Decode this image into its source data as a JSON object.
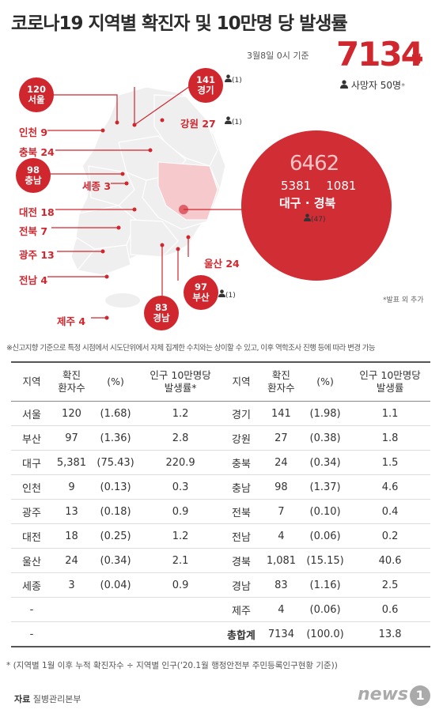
{
  "header": {
    "title": "코로나19 지역별 확진자 및 10만명 당 발생률",
    "date": "3월8일 0시 기준",
    "total": "7134",
    "total_unit": "명",
    "deaths": "사망자 50명",
    "deaths_mark": "*"
  },
  "map": {
    "big": {
      "total": "6462",
      "daegu": "5381",
      "gyeongbuk": "1081",
      "names": "대구 · 경북",
      "deaths": "(47)"
    },
    "labels": {
      "seoul_num": "120",
      "seoul_name": "서울",
      "gyeonggi_num": "141",
      "gyeonggi_name": "경기",
      "gyeonggi_death": "(1)",
      "incheon": "인천 9",
      "gangwon": "강원 27",
      "gangwon_death": "(1)",
      "chungbuk": "충북 24",
      "chungnam_num": "98",
      "chungnam_name": "충남",
      "sejong": "세종 3",
      "daejeon": "대전 18",
      "jeonbuk": "전북 7",
      "gwangju": "광주 13",
      "jeonnam": "전남 4",
      "jeju": "제주 4",
      "ulsan": "울산 24",
      "busan_num": "97",
      "busan_name": "부산",
      "busan_death": "(1)",
      "gyeongnam_num": "83",
      "gyeongnam_name": "경남"
    },
    "note": "*발표 외 추가"
  },
  "disclaimer": "※신고지향 기준으로 특정 시점에서 시도단위에서 자체 집계한 수치와는 상이할 수 있고, 이후 역학조사 진행 등에 따라 변경 가능",
  "table": {
    "headers": [
      "지역",
      "확진\n환자수",
      "(%)",
      "인구 10만명당\n발생률*",
      "지역",
      "확진\n환자수",
      "(%)",
      "인구 10만명당\n발생률"
    ],
    "rows": [
      [
        "서울",
        "120",
        "(1.68)",
        "1.2",
        "경기",
        "141",
        "(1.98)",
        "1.1"
      ],
      [
        "부산",
        "97",
        "(1.36)",
        "2.8",
        "강원",
        "27",
        "(0.38)",
        "1.8"
      ],
      [
        "대구",
        "5,381",
        "(75.43)",
        "220.9",
        "충북",
        "24",
        "(0.34)",
        "1.5"
      ],
      [
        "인천",
        "9",
        "(0.13)",
        "0.3",
        "충남",
        "98",
        "(1.37)",
        "4.6"
      ],
      [
        "광주",
        "13",
        "(0.18)",
        "0.9",
        "전북",
        "7",
        "(0.10)",
        "0.4"
      ],
      [
        "대전",
        "18",
        "(0.25)",
        "1.2",
        "전남",
        "4",
        "(0.06)",
        "0.2"
      ],
      [
        "울산",
        "24",
        "(0.34)",
        "2.1",
        "경북",
        "1,081",
        "(15.15)",
        "40.6"
      ],
      [
        "세종",
        "3",
        "(0.04)",
        "0.9",
        "경남",
        "83",
        "(1.16)",
        "2.5"
      ],
      [
        "-",
        "",
        "",
        "",
        "제주",
        "4",
        "(0.06)",
        "0.6"
      ],
      [
        "-",
        "",
        "",
        "",
        "총합계",
        "7134",
        "(100.0)",
        "13.8"
      ]
    ]
  },
  "footnote": "* (지역별 1월 이후 누적 확진자수 ÷ 지역별 인구('20.1월 행정안전부 주민등록인구현황 기준))",
  "source": {
    "label": "자료",
    "value": "질병관리본부"
  },
  "logo": {
    "text": "news",
    "mark": "1"
  },
  "colors": {
    "accent": "#d0262e",
    "map_fill": "#f0f0f0",
    "highlight": "#f6c9cc"
  }
}
